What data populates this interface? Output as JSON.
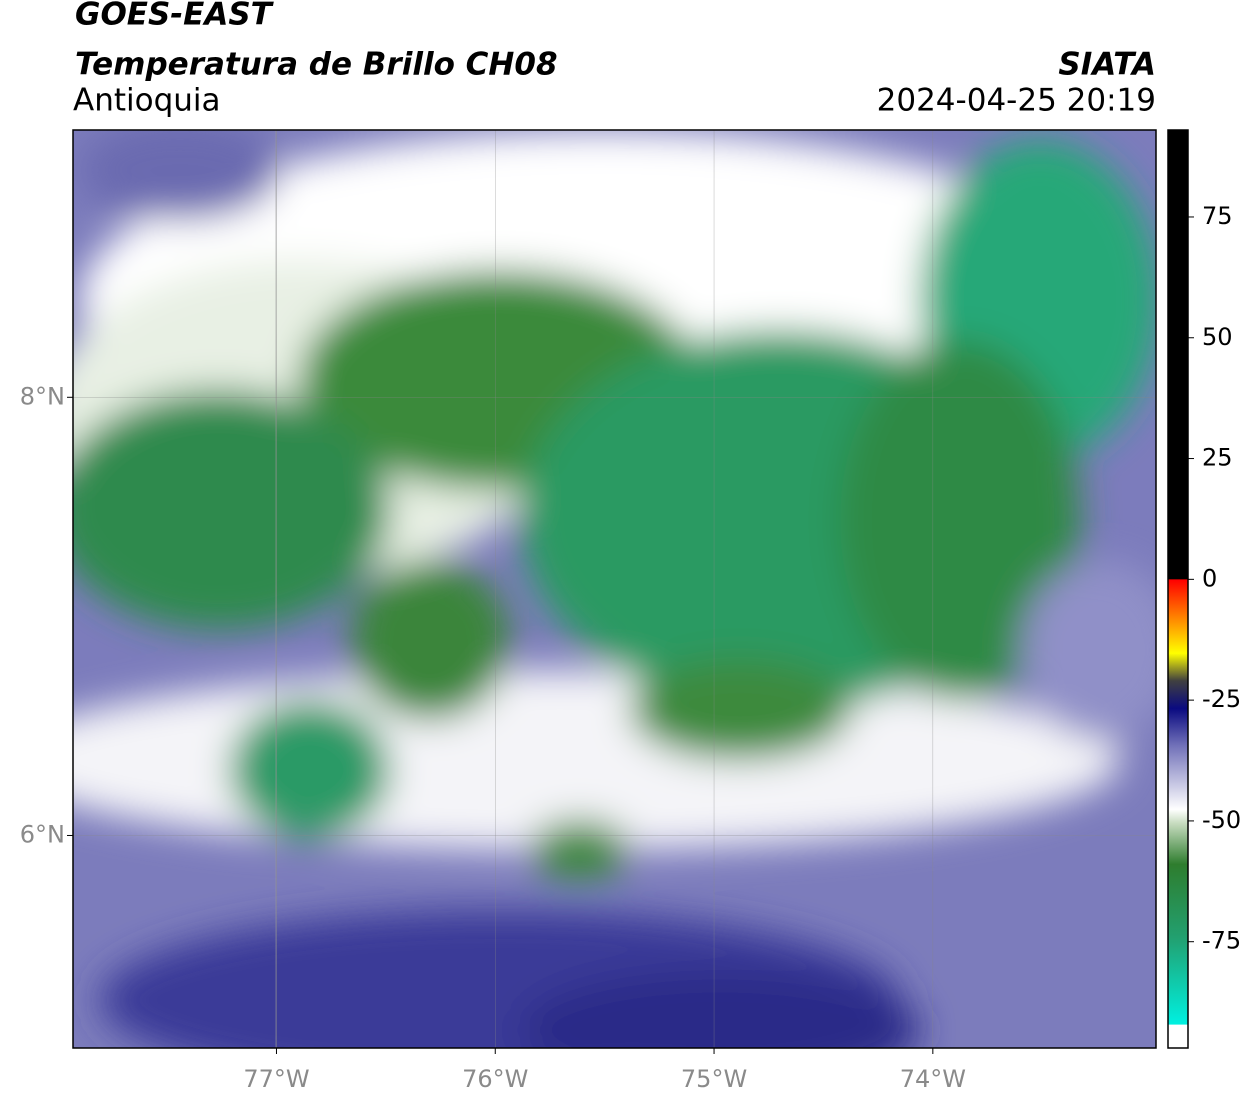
{
  "header": {
    "title": "GOES-EAST",
    "subtitle": "Temperatura de Brillo CH08",
    "region": "Antioquia",
    "source": "SIATA",
    "timestamp": "2024-04-25 20:19"
  },
  "map": {
    "xlim": [
      -77.93,
      -72.98
    ],
    "ylim": [
      5.03,
      9.22
    ],
    "xticks": [
      {
        "value": -77,
        "label": "77°W"
      },
      {
        "value": -76,
        "label": "76°W"
      },
      {
        "value": -75,
        "label": "75°W"
      },
      {
        "value": -74,
        "label": "74°W"
      }
    ],
    "yticks": [
      {
        "value": 8,
        "label": "8°N"
      },
      {
        "value": 6,
        "label": "6°N"
      }
    ]
  },
  "colorbar": {
    "lim": [
      -97,
      93
    ],
    "ticks": [
      75,
      50,
      25,
      0,
      -25,
      -50,
      -75
    ]
  }
}
